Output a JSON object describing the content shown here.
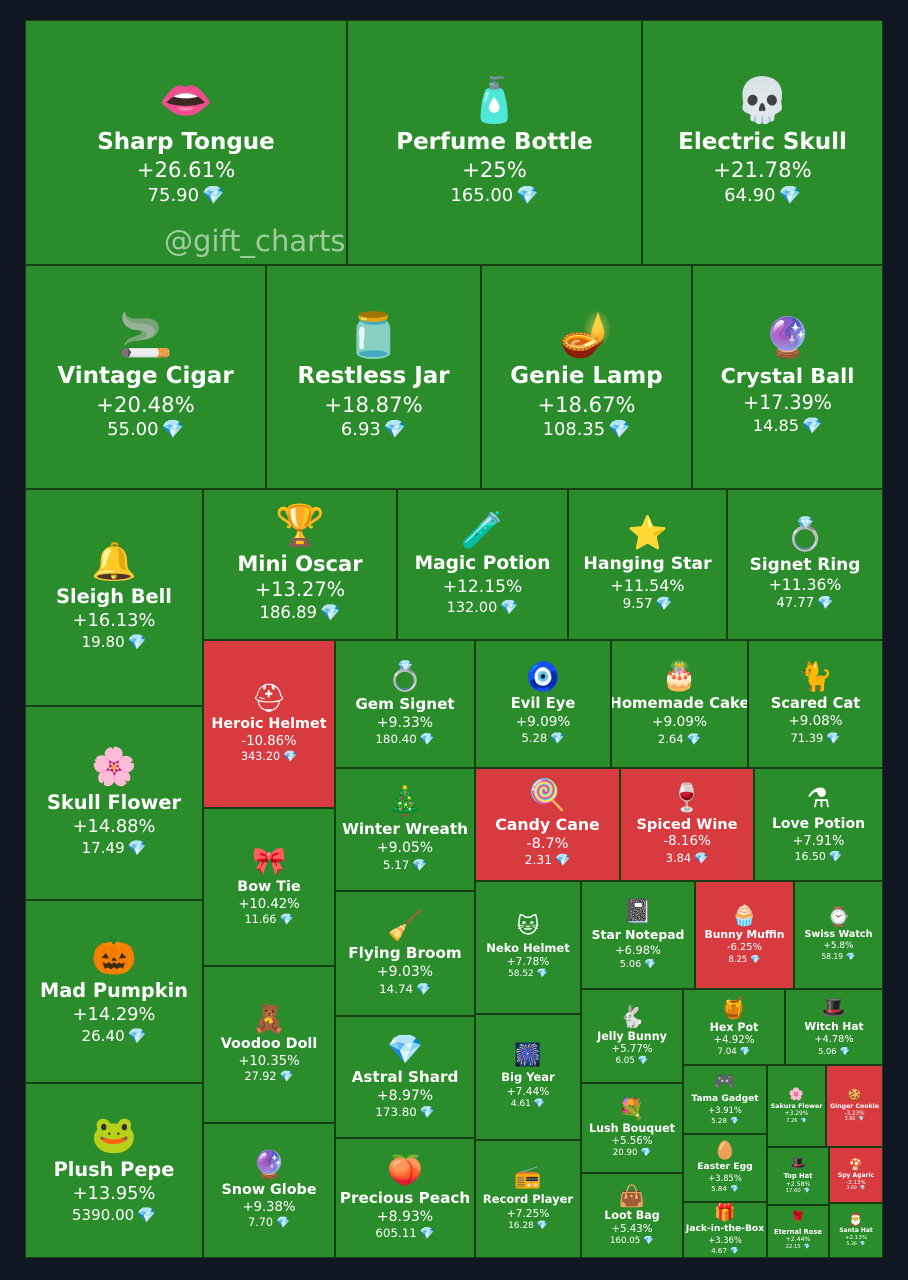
{
  "watermark": "@gift_charts",
  "colors": {
    "up": "#2a8c2a",
    "down": "#d83b3f",
    "gem": "#5fd3ff"
  },
  "price_icon": "diamond-icon",
  "chart_data": {
    "type": "treemap",
    "items": [
      {
        "name": "Sharp Tongue",
        "change": "+26.61%",
        "price": "75.90",
        "icon": "lips-icon",
        "glyph": "👄",
        "direction": "up"
      },
      {
        "name": "Perfume Bottle",
        "change": "+25%",
        "price": "165.00",
        "icon": "perfume-icon",
        "glyph": "🧴",
        "direction": "up"
      },
      {
        "name": "Electric Skull",
        "change": "+21.78%",
        "price": "64.90",
        "icon": "skull-icon",
        "glyph": "💀",
        "direction": "up"
      },
      {
        "name": "Vintage Cigar",
        "change": "+20.48%",
        "price": "55.00",
        "icon": "cigar-icon",
        "glyph": "🚬",
        "direction": "up"
      },
      {
        "name": "Restless Jar",
        "change": "+18.87%",
        "price": "6.93",
        "icon": "jar-icon",
        "glyph": "🫙",
        "direction": "up"
      },
      {
        "name": "Genie Lamp",
        "change": "+18.67%",
        "price": "108.35",
        "icon": "lamp-icon",
        "glyph": "🪔",
        "direction": "up"
      },
      {
        "name": "Crystal Ball",
        "change": "+17.39%",
        "price": "14.85",
        "icon": "crystal-ball-icon",
        "glyph": "🔮",
        "direction": "up"
      },
      {
        "name": "Sleigh Bell",
        "change": "+16.13%",
        "price": "19.80",
        "icon": "bell-icon",
        "glyph": "🔔",
        "direction": "up"
      },
      {
        "name": "Mini Oscar",
        "change": "+13.27%",
        "price": "186.89",
        "icon": "trophy-icon",
        "glyph": "🏆",
        "direction": "up"
      },
      {
        "name": "Magic Potion",
        "change": "+12.15%",
        "price": "132.00",
        "icon": "potion-icon",
        "glyph": "🧪",
        "direction": "up"
      },
      {
        "name": "Hanging Star",
        "change": "+11.54%",
        "price": "9.57",
        "icon": "star-icon",
        "glyph": "⭐",
        "direction": "up"
      },
      {
        "name": "Signet Ring",
        "change": "+11.36%",
        "price": "47.77",
        "icon": "ring-icon",
        "glyph": "💍",
        "direction": "up"
      },
      {
        "name": "Skull Flower",
        "change": "+14.88%",
        "price": "17.49",
        "icon": "flower-icon",
        "glyph": "🌸",
        "direction": "up"
      },
      {
        "name": "Heroic Helmet",
        "change": "-10.86%",
        "price": "343.20",
        "icon": "helmet-icon",
        "glyph": "⛑",
        "direction": "down"
      },
      {
        "name": "Gem Signet",
        "change": "+9.33%",
        "price": "180.40",
        "icon": "gem-ring-icon",
        "glyph": "💍",
        "direction": "up"
      },
      {
        "name": "Evil Eye",
        "change": "+9.09%",
        "price": "5.28",
        "icon": "eye-icon",
        "glyph": "🧿",
        "direction": "up"
      },
      {
        "name": "Homemade Cake",
        "change": "+9.09%",
        "price": "2.64",
        "icon": "cake-icon",
        "glyph": "🎂",
        "direction": "up"
      },
      {
        "name": "Scared Cat",
        "change": "+9.08%",
        "price": "71.39",
        "icon": "cat-icon",
        "glyph": "🐈",
        "direction": "up"
      },
      {
        "name": "Winter Wreath",
        "change": "+9.05%",
        "price": "5.17",
        "icon": "wreath-icon",
        "glyph": "🎄",
        "direction": "up"
      },
      {
        "name": "Candy Cane",
        "change": "-8.7%",
        "price": "2.31",
        "icon": "candy-icon",
        "glyph": "🍭",
        "direction": "down"
      },
      {
        "name": "Spiced Wine",
        "change": "-8.16%",
        "price": "3.84",
        "icon": "wine-icon",
        "glyph": "🍷",
        "direction": "down"
      },
      {
        "name": "Love Potion",
        "change": "+7.91%",
        "price": "16.50",
        "icon": "love-potion-icon",
        "glyph": "⚗",
        "direction": "up"
      },
      {
        "name": "Mad Pumpkin",
        "change": "+14.29%",
        "price": "26.40",
        "icon": "pumpkin-icon",
        "glyph": "🎃",
        "direction": "up"
      },
      {
        "name": "Bow Tie",
        "change": "+10.42%",
        "price": "11.66",
        "icon": "bow-tie-icon",
        "glyph": "🎀",
        "direction": "up"
      },
      {
        "name": "Flying Broom",
        "change": "+9.03%",
        "price": "14.74",
        "icon": "broom-icon",
        "glyph": "🧹",
        "direction": "up"
      },
      {
        "name": "Neko Helmet",
        "change": "+7.78%",
        "price": "58.52",
        "icon": "neko-helmet-icon",
        "glyph": "🐱",
        "direction": "up"
      },
      {
        "name": "Star Notepad",
        "change": "+6.98%",
        "price": "5.06",
        "icon": "notepad-icon",
        "glyph": "📓",
        "direction": "up"
      },
      {
        "name": "Bunny Muffin",
        "change": "-6.25%",
        "price": "8.25",
        "icon": "muffin-icon",
        "glyph": "🧁",
        "direction": "down"
      },
      {
        "name": "Swiss Watch",
        "change": "+5.8%",
        "price": "58.19",
        "icon": "watch-icon",
        "glyph": "⌚",
        "direction": "up"
      },
      {
        "name": "Voodoo Doll",
        "change": "+10.35%",
        "price": "27.92",
        "icon": "doll-icon",
        "glyph": "🧸",
        "direction": "up"
      },
      {
        "name": "Astral Shard",
        "change": "+8.97%",
        "price": "173.80",
        "icon": "shard-icon",
        "glyph": "💎",
        "direction": "up"
      },
      {
        "name": "Big Year",
        "change": "+7.44%",
        "price": "4.61",
        "icon": "big-year-icon",
        "glyph": "🎆",
        "direction": "up"
      },
      {
        "name": "Jelly Bunny",
        "change": "+5.77%",
        "price": "6.05",
        "icon": "bunny-icon",
        "glyph": "🐇",
        "direction": "up"
      },
      {
        "name": "Hex Pot",
        "change": "+4.92%",
        "price": "7.04",
        "icon": "cauldron-icon",
        "glyph": "🍯",
        "direction": "up"
      },
      {
        "name": "Witch Hat",
        "change": "+4.78%",
        "price": "5.06",
        "icon": "witch-hat-icon",
        "glyph": "🎩",
        "direction": "up"
      },
      {
        "name": "Tama Gadget",
        "change": "+3.91%",
        "price": "5.28",
        "icon": "gadget-icon",
        "glyph": "🎮",
        "direction": "up"
      },
      {
        "name": "Sakura Flower",
        "change": "+3.29%",
        "price": "7.26",
        "icon": "sakura-icon",
        "glyph": "🌸",
        "direction": "up"
      },
      {
        "name": "Ginger Cookie",
        "change": "-3.23%",
        "price": "3.60",
        "icon": "cookie-icon",
        "glyph": "🍪",
        "direction": "down"
      },
      {
        "name": "Plush Pepe",
        "change": "+13.95%",
        "price": "5390.00",
        "icon": "frog-icon",
        "glyph": "🐸",
        "direction": "up"
      },
      {
        "name": "Snow Globe",
        "change": "+9.38%",
        "price": "7.70",
        "icon": "snow-globe-icon",
        "glyph": "🔮",
        "direction": "up"
      },
      {
        "name": "Precious Peach",
        "change": "+8.93%",
        "price": "605.11",
        "icon": "peach-icon",
        "glyph": "🍑",
        "direction": "up"
      },
      {
        "name": "Record Player",
        "change": "+7.25%",
        "price": "16.28",
        "icon": "record-player-icon",
        "glyph": "📻",
        "direction": "up"
      },
      {
        "name": "Lush Bouquet",
        "change": "+5.56%",
        "price": "20.90",
        "icon": "bouquet-icon",
        "glyph": "💐",
        "direction": "up"
      },
      {
        "name": "Easter Egg",
        "change": "+3.85%",
        "price": "5.84",
        "icon": "egg-icon",
        "glyph": "🥚",
        "direction": "up"
      },
      {
        "name": "Top Hat",
        "change": "+2.58%",
        "price": "17.60",
        "icon": "top-hat-icon",
        "glyph": "🎩",
        "direction": "up"
      },
      {
        "name": "Spy Agaric",
        "change": "-2.13%",
        "price": "3.60",
        "icon": "mushroom-icon",
        "glyph": "🍄",
        "direction": "down"
      },
      {
        "name": "Loot Bag",
        "change": "+5.43%",
        "price": "160.05",
        "icon": "bag-icon",
        "glyph": "👜",
        "direction": "up"
      },
      {
        "name": "Jack-in-the-Box",
        "change": "+3.36%",
        "price": "4.67",
        "icon": "jack-box-icon",
        "glyph": "🎁",
        "direction": "up"
      },
      {
        "name": "Eternal Rose",
        "change": "+2.44%",
        "price": "22.15",
        "icon": "rose-icon",
        "glyph": "🌹",
        "direction": "up"
      },
      {
        "name": "Santa Hat",
        "change": "+2.13%",
        "price": "5.36",
        "icon": "santa-hat-icon",
        "glyph": "🎅",
        "direction": "up"
      }
    ]
  }
}
